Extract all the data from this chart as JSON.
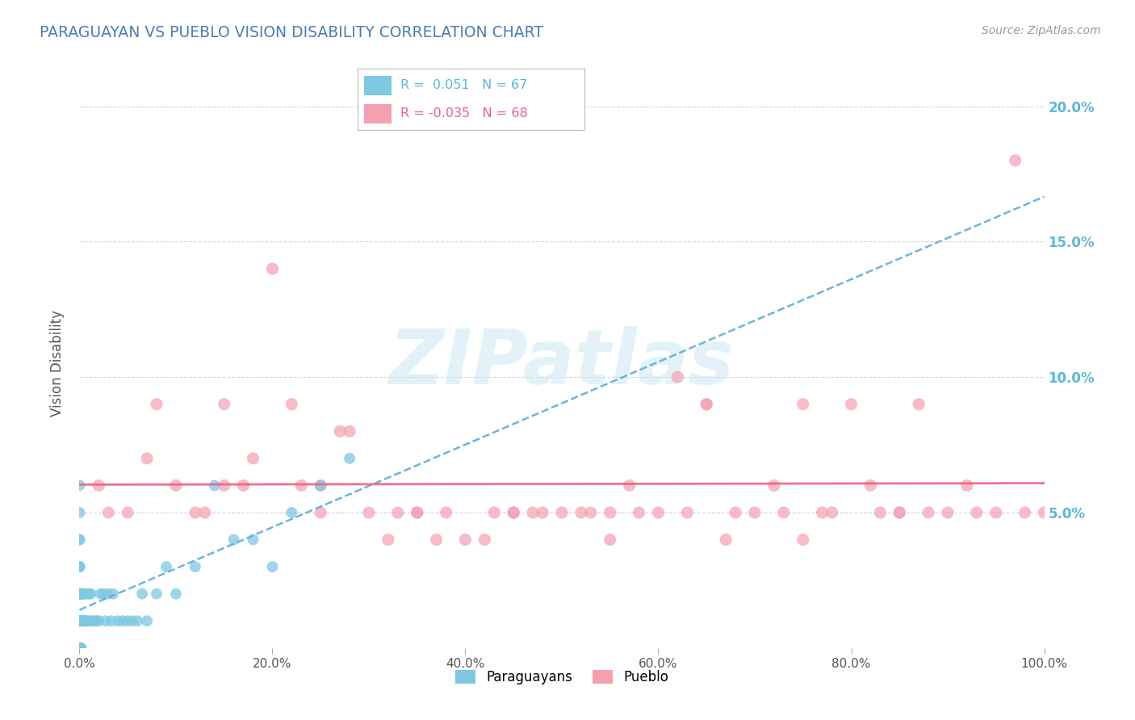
{
  "title": "PARAGUAYAN VS PUEBLO VISION DISABILITY CORRELATION CHART",
  "source_text": "Source: ZipAtlas.com",
  "ylabel": "Vision Disability",
  "xlim": [
    0,
    1.0
  ],
  "ylim": [
    0,
    0.21
  ],
  "x_ticks": [
    0.0,
    0.2,
    0.4,
    0.6,
    0.8,
    1.0
  ],
  "x_tick_labels": [
    "0.0%",
    "20.0%",
    "40.0%",
    "60.0%",
    "80.0%",
    "100.0%"
  ],
  "y_ticks": [
    0.0,
    0.05,
    0.1,
    0.15,
    0.2
  ],
  "y_tick_labels": [
    "",
    "5.0%",
    "10.0%",
    "15.0%",
    "20.0%"
  ],
  "r_paraguayan": 0.051,
  "n_paraguayan": 67,
  "r_pueblo": -0.035,
  "n_pueblo": 68,
  "color_paraguayan": "#7ec8e3",
  "color_pueblo": "#f4a0b0",
  "color_paraguayan_line": "#5bafd6",
  "color_pueblo_line": "#f06080",
  "title_color": "#4a7fb5",
  "tick_color_right": "#5bb8d4",
  "background_color": "#ffffff",
  "paraguayan_x": [
    0.0,
    0.0,
    0.0,
    0.0,
    0.0,
    0.0,
    0.0,
    0.0,
    0.0,
    0.0,
    0.0,
    0.0,
    0.0,
    0.0,
    0.0,
    0.0,
    0.0,
    0.0,
    0.0,
    0.0,
    0.001,
    0.001,
    0.001,
    0.002,
    0.002,
    0.002,
    0.003,
    0.003,
    0.004,
    0.004,
    0.005,
    0.005,
    0.006,
    0.007,
    0.008,
    0.009,
    0.01,
    0.011,
    0.012,
    0.014,
    0.016,
    0.018,
    0.02,
    0.022,
    0.025,
    0.027,
    0.03,
    0.033,
    0.035,
    0.04,
    0.045,
    0.05,
    0.055,
    0.06,
    0.065,
    0.07,
    0.08,
    0.09,
    0.1,
    0.12,
    0.14,
    0.16,
    0.18,
    0.2,
    0.22,
    0.25,
    0.28
  ],
  "paraguayan_y": [
    0.0,
    0.0,
    0.0,
    0.0,
    0.01,
    0.01,
    0.01,
    0.01,
    0.01,
    0.02,
    0.02,
    0.02,
    0.02,
    0.03,
    0.03,
    0.03,
    0.04,
    0.04,
    0.05,
    0.06,
    0.0,
    0.01,
    0.02,
    0.0,
    0.01,
    0.02,
    0.01,
    0.02,
    0.01,
    0.02,
    0.01,
    0.02,
    0.01,
    0.01,
    0.02,
    0.01,
    0.02,
    0.01,
    0.02,
    0.01,
    0.01,
    0.01,
    0.01,
    0.02,
    0.02,
    0.01,
    0.02,
    0.01,
    0.02,
    0.01,
    0.01,
    0.01,
    0.01,
    0.01,
    0.02,
    0.01,
    0.02,
    0.03,
    0.02,
    0.03,
    0.06,
    0.04,
    0.04,
    0.03,
    0.05,
    0.06,
    0.07
  ],
  "pueblo_x": [
    0.02,
    0.05,
    0.07,
    0.1,
    0.12,
    0.15,
    0.17,
    0.2,
    0.22,
    0.25,
    0.27,
    0.3,
    0.32,
    0.35,
    0.37,
    0.4,
    0.42,
    0.45,
    0.47,
    0.5,
    0.52,
    0.55,
    0.57,
    0.6,
    0.62,
    0.65,
    0.67,
    0.7,
    0.72,
    0.75,
    0.77,
    0.8,
    0.82,
    0.85,
    0.87,
    0.9,
    0.92,
    0.95,
    0.97,
    1.0,
    0.03,
    0.08,
    0.13,
    0.18,
    0.23,
    0.28,
    0.33,
    0.38,
    0.43,
    0.48,
    0.53,
    0.58,
    0.63,
    0.68,
    0.73,
    0.78,
    0.83,
    0.88,
    0.93,
    0.98,
    0.15,
    0.25,
    0.35,
    0.45,
    0.55,
    0.65,
    0.75,
    0.85
  ],
  "pueblo_y": [
    0.06,
    0.05,
    0.07,
    0.06,
    0.05,
    0.09,
    0.06,
    0.14,
    0.09,
    0.06,
    0.08,
    0.05,
    0.04,
    0.05,
    0.04,
    0.04,
    0.04,
    0.05,
    0.05,
    0.05,
    0.05,
    0.04,
    0.06,
    0.05,
    0.1,
    0.09,
    0.04,
    0.05,
    0.06,
    0.04,
    0.05,
    0.09,
    0.06,
    0.05,
    0.09,
    0.05,
    0.06,
    0.05,
    0.18,
    0.05,
    0.05,
    0.09,
    0.05,
    0.07,
    0.06,
    0.08,
    0.05,
    0.05,
    0.05,
    0.05,
    0.05,
    0.05,
    0.05,
    0.05,
    0.05,
    0.05,
    0.05,
    0.05,
    0.05,
    0.05,
    0.06,
    0.05,
    0.05,
    0.05,
    0.05,
    0.09,
    0.09,
    0.05
  ]
}
